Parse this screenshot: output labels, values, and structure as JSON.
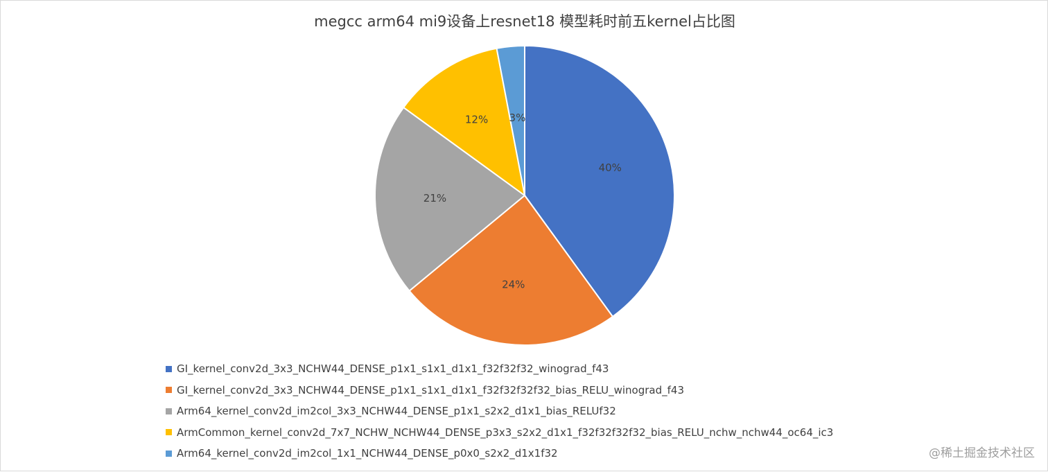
{
  "chart_data": {
    "type": "pie",
    "title": "megcc arm64 mi9设备上resnet18 模型耗时前五kernel占比图",
    "slices": [
      {
        "label": "GI_kernel_conv2d_3x3_NCHW44_DENSE_p1x1_s1x1_d1x1_f32f32f32_winograd_f43",
        "value": 40,
        "display": "40%",
        "color": "#4472C4"
      },
      {
        "label": "GI_kernel_conv2d_3x3_NCHW44_DENSE_p1x1_s1x1_d1x1_f32f32f32f32_bias_RELU_winograd_f43",
        "value": 24,
        "display": "24%",
        "color": "#ED7D31"
      },
      {
        "label": "Arm64_kernel_conv2d_im2col_3x3_NCHW44_DENSE_p1x1_s2x2_d1x1_bias_RELUf32",
        "value": 21,
        "display": "21%",
        "color": "#A5A5A5"
      },
      {
        "label": "ArmCommon_kernel_conv2d_7x7_NCHW_NCHW44_DENSE_p3x3_s2x2_d1x1_f32f32f32f32_bias_RELU_nchw_nchw44_oc64_ic3",
        "value": 12,
        "display": "12%",
        "color": "#FFC000"
      },
      {
        "label": "Arm64_kernel_conv2d_im2col_1x1_NCHW44_DENSE_p0x0_s2x2_d1x1f32",
        "value": 3,
        "display": "3%",
        "color": "#5B9BD5"
      }
    ],
    "legend_position": "bottom-left"
  },
  "watermark": "@稀土掘金技术社区"
}
